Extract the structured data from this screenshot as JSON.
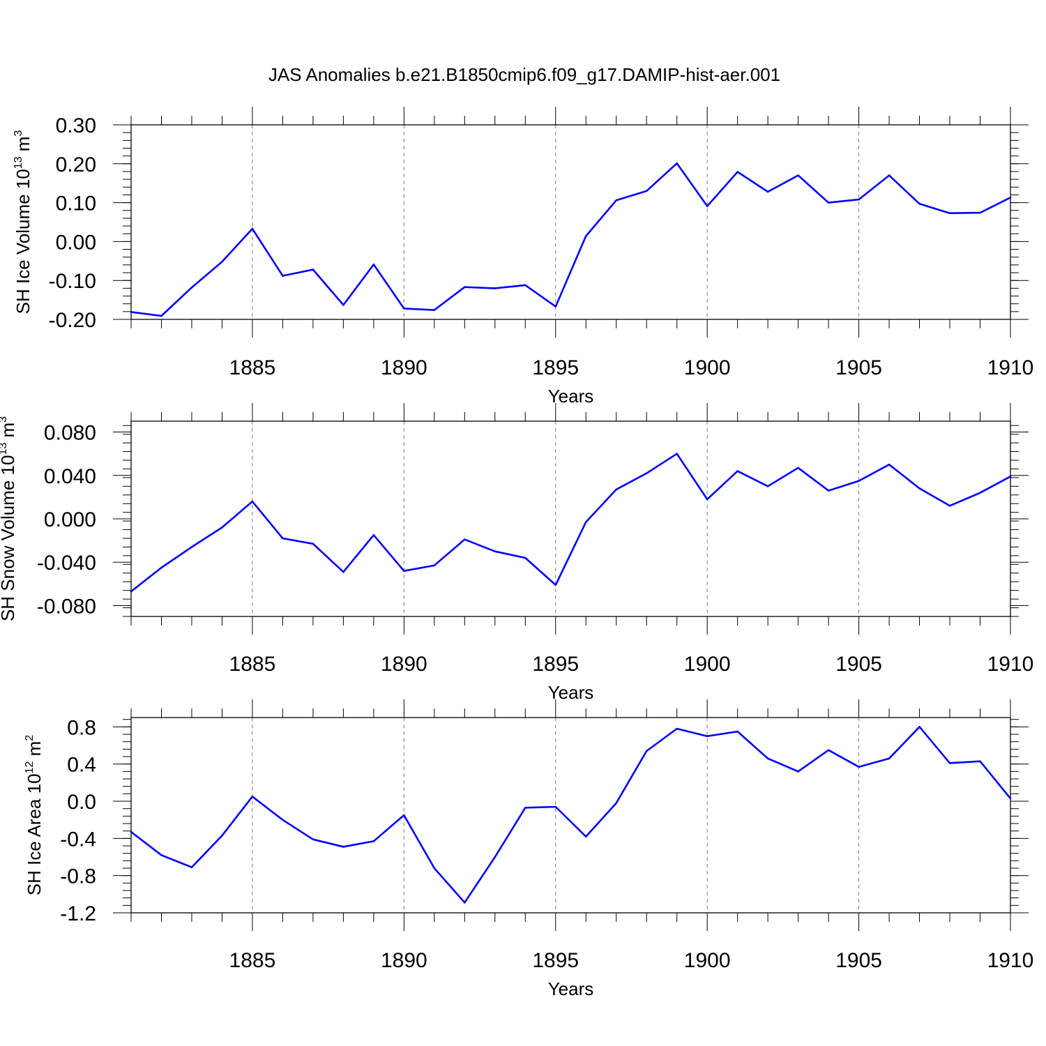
{
  "title": "JAS Anomalies b.e21.B1850cmip6.f09_g17.DAMIP-hist-aer.001",
  "colors": {
    "series": "#0000ff",
    "axis": "#000000",
    "grid": "#7a7a7a"
  },
  "chart_data": [
    {
      "type": "line",
      "name": "ice-volume",
      "ylabel": {
        "text": "SH Ice Volume 10",
        "sup": "13",
        "unit": " m",
        "unit_sup": "3"
      },
      "xlabel": "Years",
      "xlim": [
        1881,
        1910
      ],
      "ylim": [
        -0.2,
        0.3
      ],
      "yticks": [
        -0.2,
        -0.1,
        0.0,
        0.1,
        0.2,
        0.3
      ],
      "ytick_labels": [
        "-0.20",
        "-0.10",
        "0.00",
        "0.10",
        "0.20",
        "0.30"
      ],
      "yminor_step": 0.02,
      "xticks": [
        1885,
        1890,
        1895,
        1900,
        1905,
        1910
      ],
      "xtick_labels": [
        "1885",
        "1890",
        "1895",
        "1900",
        "1905",
        "1910"
      ],
      "x": [
        1881,
        1882,
        1883,
        1884,
        1885,
        1886,
        1887,
        1888,
        1889,
        1890,
        1891,
        1892,
        1893,
        1894,
        1895,
        1896,
        1897,
        1898,
        1899,
        1900,
        1901,
        1902,
        1903,
        1904,
        1905,
        1906,
        1907,
        1908,
        1909,
        1910
      ],
      "values": [
        -0.181,
        -0.191,
        -0.118,
        -0.052,
        0.033,
        -0.088,
        -0.072,
        -0.163,
        -0.059,
        -0.172,
        -0.176,
        -0.117,
        -0.12,
        -0.112,
        -0.167,
        0.014,
        0.106,
        0.13,
        0.201,
        0.091,
        0.179,
        0.128,
        0.17,
        0.1,
        0.108,
        0.17,
        0.097,
        0.073,
        0.074,
        0.113
      ]
    },
    {
      "type": "line",
      "name": "snow-volume",
      "ylabel": {
        "text": "SH Snow Volume 10",
        "sup": "13",
        "unit": " m",
        "unit_sup": "3"
      },
      "xlabel": "Years",
      "xlim": [
        1881,
        1910
      ],
      "ylim": [
        -0.09,
        0.09
      ],
      "yticks": [
        -0.08,
        -0.04,
        0.0,
        0.04,
        0.08
      ],
      "ytick_labels": [
        "-0.080",
        "-0.040",
        "0.000",
        "0.040",
        "0.080"
      ],
      "yminor_step": 0.008,
      "xticks": [
        1885,
        1890,
        1895,
        1900,
        1905,
        1910
      ],
      "xtick_labels": [
        "1885",
        "1890",
        "1895",
        "1900",
        "1905",
        "1910"
      ],
      "x": [
        1881,
        1882,
        1883,
        1884,
        1885,
        1886,
        1887,
        1888,
        1889,
        1890,
        1891,
        1892,
        1893,
        1894,
        1895,
        1896,
        1897,
        1898,
        1899,
        1900,
        1901,
        1902,
        1903,
        1904,
        1905,
        1906,
        1907,
        1908,
        1909,
        1910
      ],
      "values": [
        -0.067,
        -0.045,
        -0.026,
        -0.008,
        0.016,
        -0.018,
        -0.023,
        -0.049,
        -0.015,
        -0.048,
        -0.043,
        -0.019,
        -0.03,
        -0.036,
        -0.061,
        -0.003,
        0.027,
        0.042,
        0.06,
        0.018,
        0.044,
        0.03,
        0.047,
        0.026,
        0.035,
        0.05,
        0.028,
        0.012,
        0.024,
        0.039
      ]
    },
    {
      "type": "line",
      "name": "ice-area",
      "ylabel": {
        "text": "SH Ice Area 10",
        "sup": "12",
        "unit": " m",
        "unit_sup": "2"
      },
      "xlabel": "Years",
      "xlim": [
        1881,
        1910
      ],
      "ylim": [
        -1.2,
        0.9
      ],
      "yticks": [
        -1.2,
        -0.8,
        -0.4,
        0.0,
        0.4,
        0.8
      ],
      "ytick_labels": [
        "-1.2",
        "-0.8",
        "-0.4",
        "0.0",
        "0.4",
        "0.8"
      ],
      "yminor_step": 0.08,
      "xticks": [
        1885,
        1890,
        1895,
        1900,
        1905,
        1910
      ],
      "xtick_labels": [
        "1885",
        "1890",
        "1895",
        "1900",
        "1905",
        "1910"
      ],
      "x": [
        1881,
        1882,
        1883,
        1884,
        1885,
        1886,
        1887,
        1888,
        1889,
        1890,
        1891,
        1892,
        1893,
        1894,
        1895,
        1896,
        1897,
        1898,
        1899,
        1900,
        1901,
        1902,
        1903,
        1904,
        1905,
        1906,
        1907,
        1908,
        1909,
        1910
      ],
      "values": [
        -0.33,
        -0.58,
        -0.71,
        -0.37,
        0.05,
        -0.2,
        -0.41,
        -0.49,
        -0.43,
        -0.15,
        -0.72,
        -1.09,
        -0.6,
        -0.07,
        -0.06,
        -0.38,
        -0.02,
        0.54,
        0.78,
        0.7,
        0.75,
        0.46,
        0.32,
        0.55,
        0.37,
        0.46,
        0.8,
        0.41,
        0.43,
        0.03
      ]
    }
  ]
}
